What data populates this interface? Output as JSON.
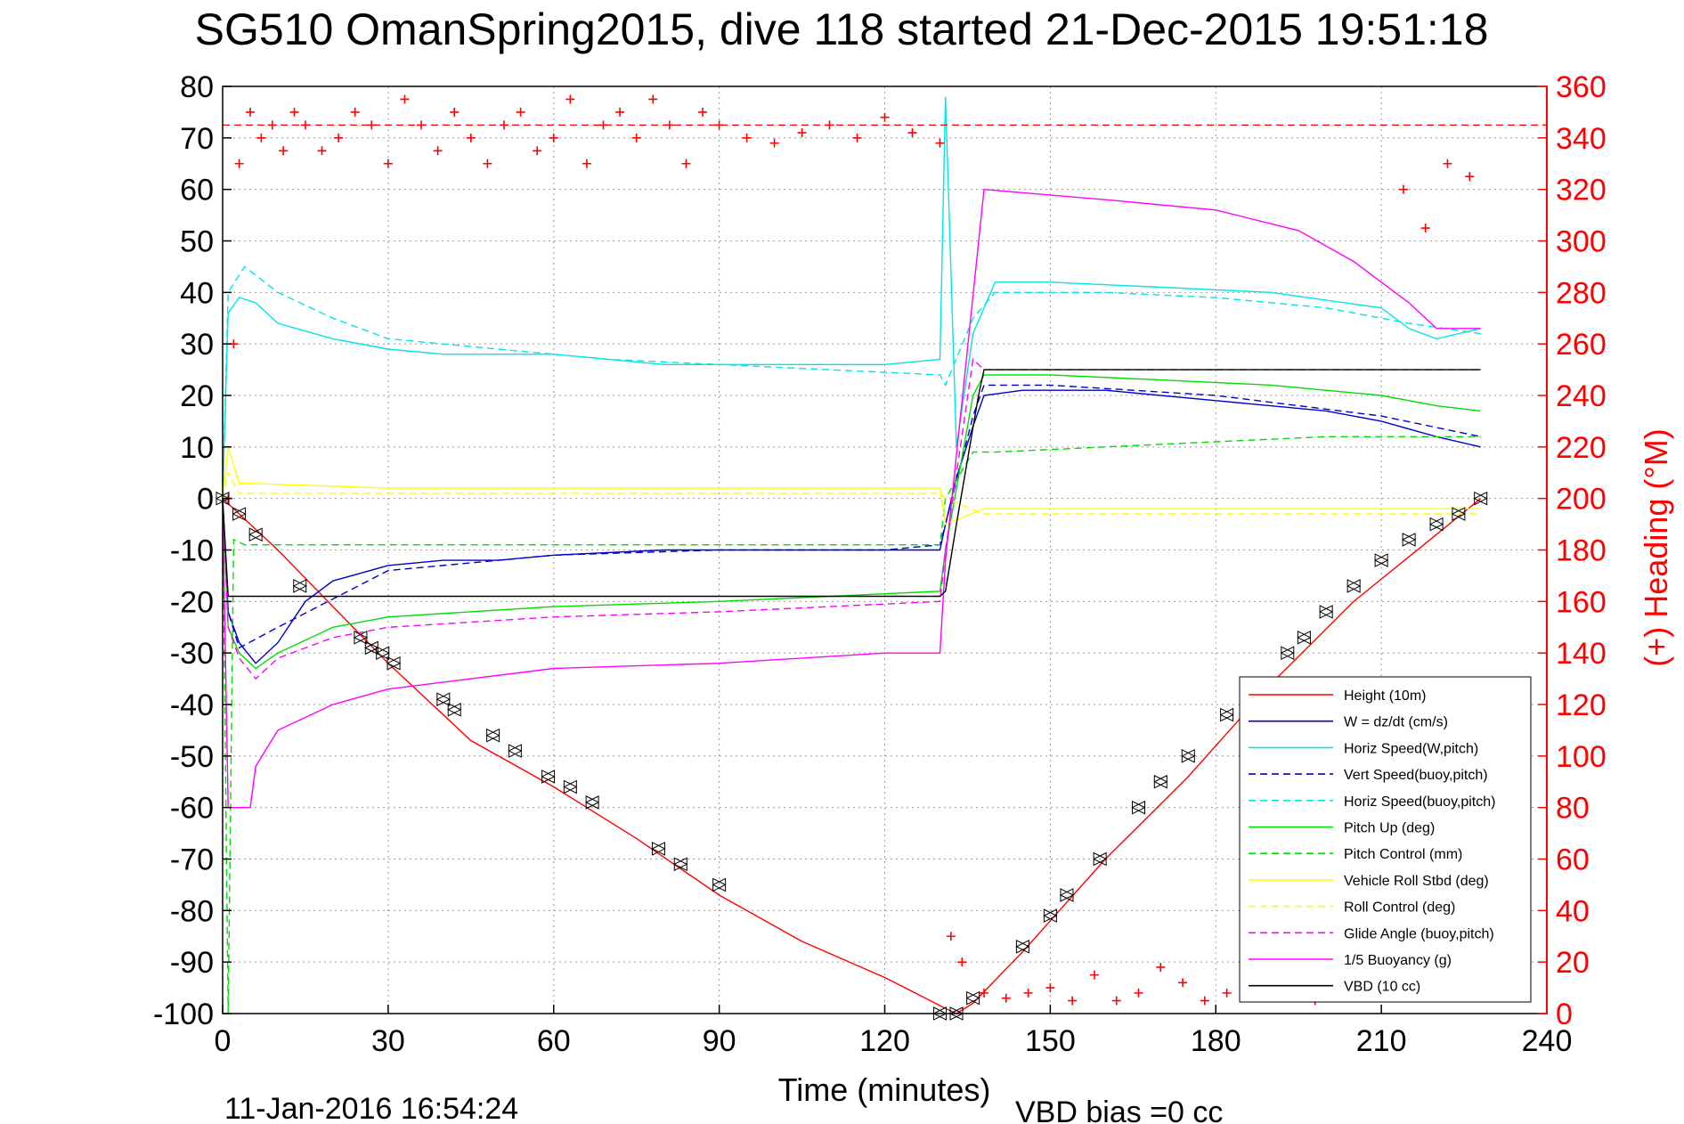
{
  "chart_data": {
    "type": "line",
    "title": "SG510 OmanSpring2015, dive 118 started 21-Dec-2015 19:51:18",
    "xlabel": "Time (minutes)",
    "ylabel": "",
    "y2label": "(+) Heading (°M)",
    "xlim": [
      0,
      240
    ],
    "ylim": [
      -100,
      80
    ],
    "y2lim": [
      0,
      360
    ],
    "xticks": [
      "0",
      "30",
      "60",
      "90",
      "120",
      "150",
      "180",
      "210",
      "240"
    ],
    "yticks": [
      "80",
      "70",
      "60",
      "50",
      "40",
      "30",
      "20",
      "10",
      "0",
      "-10",
      "-20",
      "-30",
      "-40",
      "-50",
      "-60",
      "-70",
      "-80",
      "-90",
      "-100"
    ],
    "y2ticks": [
      "360",
      "340",
      "320",
      "300",
      "280",
      "260",
      "240",
      "220",
      "200",
      "180",
      "160",
      "140",
      "120",
      "100",
      "80",
      "60",
      "40",
      "20",
      "0"
    ],
    "grid": true,
    "legend_position": "bottom-right",
    "footer_left": "11-Jan-2016 16:54:24",
    "footer_right": "VBD bias =0 cc",
    "colors": {
      "red": "#ff0000",
      "blue": "#0000cc",
      "cyan": "#00e5e5",
      "green": "#00dd00",
      "yellow": "#ffff00",
      "magenta": "#ff00ff",
      "black": "#000000"
    },
    "series": [
      {
        "name": "Height (10m)",
        "color": "#ff0000",
        "dash": false,
        "x": [
          0,
          3,
          10,
          20,
          30,
          45,
          60,
          75,
          90,
          105,
          120,
          131,
          133,
          136,
          145,
          160,
          175,
          190,
          205,
          220,
          228
        ],
        "y": [
          0,
          -3,
          -10,
          -21,
          -32,
          -47,
          -56,
          -66,
          -77,
          -86,
          -93,
          -99,
          -100,
          -98,
          -88,
          -70,
          -54,
          -36,
          -20,
          -7,
          0
        ]
      },
      {
        "name": "W = dz/dt (cm/s)",
        "color": "#0000cc",
        "dash": false,
        "x": [
          0,
          1,
          3,
          6,
          10,
          15,
          20,
          30,
          40,
          50,
          60,
          80,
          100,
          120,
          130,
          131,
          133,
          136,
          138,
          145,
          160,
          180,
          200,
          210,
          220,
          228
        ],
        "y": [
          0,
          -22,
          -28,
          -32,
          -28,
          -20,
          -16,
          -13,
          -12,
          -12,
          -11,
          -10,
          -10,
          -10,
          -10,
          -5,
          4,
          14,
          20,
          21,
          21,
          19,
          17,
          15,
          12,
          10
        ]
      },
      {
        "name": "Horiz Speed(W,pitch)",
        "color": "#00e5e5",
        "dash": false,
        "x": [
          0,
          1,
          3,
          6,
          10,
          20,
          30,
          40,
          60,
          80,
          100,
          120,
          130,
          131,
          133,
          136,
          140,
          150,
          170,
          190,
          210,
          215,
          220,
          228
        ],
        "y": [
          0,
          36,
          39,
          38,
          34,
          31,
          29,
          28,
          28,
          26,
          26,
          26,
          27,
          78,
          10,
          32,
          42,
          42,
          41,
          40,
          37,
          33,
          31,
          33
        ]
      },
      {
        "name": "Vert Speed(buoy,pitch)",
        "color": "#0000cc",
        "dash": true,
        "x": [
          0,
          1,
          3,
          10,
          30,
          60,
          90,
          120,
          130,
          131,
          136,
          138,
          150,
          180,
          210,
          228
        ],
        "y": [
          0,
          -22,
          -29,
          -25,
          -14,
          -11,
          -10,
          -10,
          -9,
          -5,
          16,
          22,
          22,
          20,
          16,
          12
        ]
      },
      {
        "name": "Horiz Speed(buoy,pitch)",
        "color": "#00e5e5",
        "dash": true,
        "x": [
          0,
          1,
          4,
          10,
          20,
          30,
          50,
          70,
          90,
          110,
          130,
          131,
          136,
          140,
          160,
          180,
          200,
          215,
          228
        ],
        "y": [
          0,
          40,
          45,
          40,
          35,
          31,
          29,
          27,
          26,
          25,
          24,
          22,
          35,
          40,
          40,
          39,
          37,
          34,
          32
        ]
      },
      {
        "name": "Pitch Up (deg)",
        "color": "#00dd00",
        "dash": false,
        "x": [
          0,
          1,
          3,
          6,
          10,
          20,
          30,
          60,
          90,
          130,
          131,
          136,
          138,
          150,
          170,
          190,
          210,
          220,
          228
        ],
        "y": [
          0,
          -25,
          -30,
          -33,
          -30,
          -25,
          -23,
          -21,
          -20,
          -18,
          -10,
          20,
          24,
          24,
          23,
          22,
          20,
          18,
          17
        ]
      },
      {
        "name": "Pitch Control (mm)",
        "color": "#00dd00",
        "dash": true,
        "x": [
          0,
          1,
          2,
          4,
          10,
          30,
          60,
          90,
          130,
          131,
          136,
          140,
          160,
          180,
          200,
          228
        ],
        "y": [
          0,
          -100,
          -8,
          -9,
          -9,
          -9,
          -9,
          -9,
          -9,
          0,
          9,
          9,
          10,
          11,
          12,
          12
        ]
      },
      {
        "name": "Vehicle Roll Stbd (deg)",
        "color": "#ffff00",
        "dash": false,
        "x": [
          0,
          1,
          3,
          30,
          60,
          90,
          130,
          131,
          138,
          160,
          190,
          228
        ],
        "y": [
          0,
          10,
          3,
          2,
          2,
          2,
          2,
          -5,
          -2,
          -2,
          -2,
          -2
        ]
      },
      {
        "name": "Roll Control (deg)",
        "color": "#ffff00",
        "dash": true,
        "x": [
          0,
          1,
          3,
          130,
          131,
          138,
          228
        ],
        "y": [
          0,
          5,
          1,
          1,
          0,
          -3,
          -3
        ]
      },
      {
        "name": "Glide Angle (buoy,pitch)",
        "color": "#ff00ff",
        "dash": true,
        "x": [
          0,
          1,
          3,
          6,
          10,
          20,
          30,
          60,
          90,
          130,
          131,
          136,
          138,
          150,
          180,
          210,
          228
        ],
        "y": [
          0,
          -25,
          -31,
          -35,
          -31,
          -27,
          -25,
          -23,
          -22,
          -20,
          -10,
          27,
          25,
          25,
          25,
          25,
          25
        ]
      },
      {
        "name": "1/5 Buoyancy (g)",
        "color": "#ff00ff",
        "dash": false,
        "x": [
          0,
          1,
          2,
          5,
          6,
          10,
          20,
          30,
          45,
          60,
          90,
          120,
          130,
          131,
          138,
          160,
          180,
          195,
          205,
          215,
          220,
          228
        ],
        "y": [
          0,
          -60,
          -60,
          -60,
          -52,
          -45,
          -40,
          -37,
          -35,
          -33,
          -32,
          -30,
          -30,
          -12,
          60,
          58,
          56,
          52,
          46,
          38,
          33,
          33
        ]
      },
      {
        "name": "VBD (10 cc)",
        "color": "#000000",
        "dash": false,
        "x": [
          0,
          1,
          2,
          130,
          131,
          133,
          137,
          138,
          228
        ],
        "y": [
          0,
          -19,
          -19,
          -19,
          -18,
          -5,
          20,
          25,
          25
        ]
      }
    ],
    "heading": {
      "name": "(+) Heading",
      "reference_line": 345,
      "x": [
        1,
        2,
        3,
        5,
        7,
        9,
        11,
        13,
        15,
        18,
        21,
        24,
        27,
        30,
        33,
        36,
        39,
        42,
        45,
        48,
        51,
        54,
        57,
        60,
        63,
        66,
        69,
        72,
        75,
        78,
        81,
        84,
        87,
        90,
        95,
        100,
        105,
        110,
        115,
        120,
        125,
        130,
        132,
        134,
        138,
        142,
        146,
        150,
        154,
        158,
        162,
        166,
        170,
        174,
        178,
        182,
        186,
        190,
        194,
        198,
        202,
        206,
        210,
        214,
        218,
        222,
        226
      ],
      "y": [
        200,
        260,
        330,
        350,
        340,
        345,
        335,
        350,
        345,
        335,
        340,
        350,
        345,
        330,
        355,
        345,
        335,
        350,
        340,
        330,
        345,
        350,
        335,
        340,
        355,
        330,
        345,
        350,
        340,
        355,
        345,
        330,
        350,
        345,
        340,
        338,
        342,
        345,
        340,
        348,
        342,
        338,
        30,
        20,
        8,
        6,
        8,
        10,
        5,
        15,
        5,
        8,
        18,
        12,
        5,
        8,
        10,
        6,
        8,
        5,
        12,
        8,
        10,
        320,
        305,
        330,
        325
      ]
    },
    "markers": {
      "name": "Height samples",
      "x": [
        0,
        3,
        6,
        14,
        25,
        27,
        29,
        31,
        40,
        42,
        49,
        53,
        59,
        63,
        67,
        79,
        83,
        90,
        130,
        133,
        136,
        145,
        150,
        153,
        159,
        166,
        170,
        175,
        182,
        187,
        193,
        196,
        200,
        205,
        210,
        215,
        220,
        224,
        228
      ],
      "y": [
        0,
        -3,
        -7,
        -17,
        -27,
        -29,
        -30,
        -32,
        -39,
        -41,
        -46,
        -49,
        -54,
        -56,
        -59,
        -68,
        -71,
        -75,
        -100,
        -100,
        -97,
        -87,
        -81,
        -77,
        -70,
        -60,
        -55,
        -50,
        -42,
        -37,
        -30,
        -27,
        -22,
        -17,
        -12,
        -8,
        -5,
        -3,
        0
      ]
    },
    "legend": [
      {
        "label": "Height (10m)",
        "color": "#ff0000",
        "dash": false
      },
      {
        "label": "W = dz/dt (cm/s)",
        "color": "#0000cc",
        "dash": false
      },
      {
        "label": "Horiz Speed(W,pitch)",
        "color": "#00e5e5",
        "dash": false
      },
      {
        "label": "Vert Speed(buoy,pitch)",
        "color": "#0000cc",
        "dash": true
      },
      {
        "label": "Horiz Speed(buoy,pitch)",
        "color": "#00e5e5",
        "dash": true
      },
      {
        "label": "Pitch Up (deg)",
        "color": "#00dd00",
        "dash": false
      },
      {
        "label": "Pitch Control (mm)",
        "color": "#00dd00",
        "dash": true
      },
      {
        "label": "Vehicle Roll Stbd (deg)",
        "color": "#ffff00",
        "dash": false
      },
      {
        "label": "Roll Control (deg)",
        "color": "#ffff00",
        "dash": true
      },
      {
        "label": "Glide Angle (buoy,pitch)",
        "color": "#ff00ff",
        "dash": true
      },
      {
        "label": "1/5 Buoyancy (g)",
        "color": "#ff00ff",
        "dash": false
      },
      {
        "label": "VBD (10 cc)",
        "color": "#000000",
        "dash": false
      }
    ]
  }
}
